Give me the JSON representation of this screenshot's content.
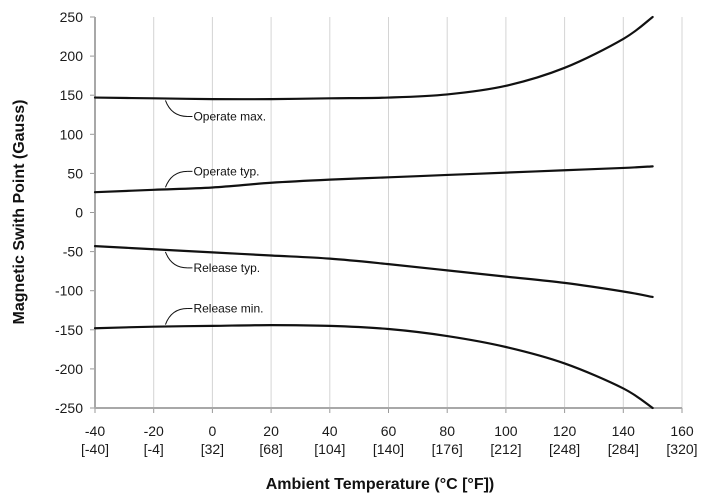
{
  "chart_data": {
    "type": "line",
    "title": "",
    "xlabel": "Ambient Temperature (°C [°F])",
    "ylabel": "Magnetic Swith Point (Gauss)",
    "xlim": [
      -40,
      160
    ],
    "ylim": [
      -250,
      250
    ],
    "x_ticks": [
      {
        "c": "-40",
        "f": "[-40]"
      },
      {
        "c": "-20",
        "f": "[-4]"
      },
      {
        "c": "0",
        "f": "[32]"
      },
      {
        "c": "20",
        "f": "[68]"
      },
      {
        "c": "40",
        "f": "[104]"
      },
      {
        "c": "60",
        "f": "[140]"
      },
      {
        "c": "80",
        "f": "[176]"
      },
      {
        "c": "100",
        "f": "[212]"
      },
      {
        "c": "120",
        "f": "[248]"
      },
      {
        "c": "140",
        "f": "[284]"
      },
      {
        "c": "160",
        "f": "[320]"
      }
    ],
    "y_ticks": [
      "250",
      "200",
      "150",
      "100",
      "50",
      "0",
      "-50",
      "-100",
      "-150",
      "-200",
      "-250"
    ],
    "grid": "vertical",
    "color": "#111111",
    "series": [
      {
        "name": "Operate max.",
        "x": [
          -40,
          -20,
          0,
          20,
          40,
          60,
          80,
          100,
          120,
          140,
          150
        ],
        "y": [
          147,
          146,
          145,
          145,
          146,
          147,
          151,
          162,
          185,
          222,
          250
        ]
      },
      {
        "name": "Operate typ.",
        "x": [
          -40,
          -20,
          0,
          20,
          40,
          60,
          80,
          100,
          120,
          140,
          150
        ],
        "y": [
          26,
          29,
          32,
          38,
          42,
          45,
          48,
          51,
          54,
          57,
          59
        ]
      },
      {
        "name": "Release typ.",
        "x": [
          -40,
          -20,
          0,
          20,
          40,
          60,
          80,
          100,
          120,
          140,
          150
        ],
        "y": [
          -43,
          -47,
          -51,
          -55,
          -59,
          -66,
          -74,
          -82,
          -90,
          -101,
          -108
        ]
      },
      {
        "name": "Release min.",
        "x": [
          -40,
          -20,
          0,
          20,
          40,
          60,
          80,
          100,
          120,
          140,
          150
        ],
        "y": [
          -148,
          -146,
          -145,
          -144,
          -145,
          -149,
          -158,
          -172,
          -193,
          -225,
          -250
        ]
      }
    ],
    "annotations": [
      {
        "text": "Operate max.",
        "series": 0,
        "at_x": -16
      },
      {
        "text": "Operate typ.",
        "series": 1,
        "at_x": -16
      },
      {
        "text": "Release typ.",
        "series": 2,
        "at_x": -16
      },
      {
        "text": "Release min.",
        "series": 3,
        "at_x": -16
      }
    ]
  }
}
